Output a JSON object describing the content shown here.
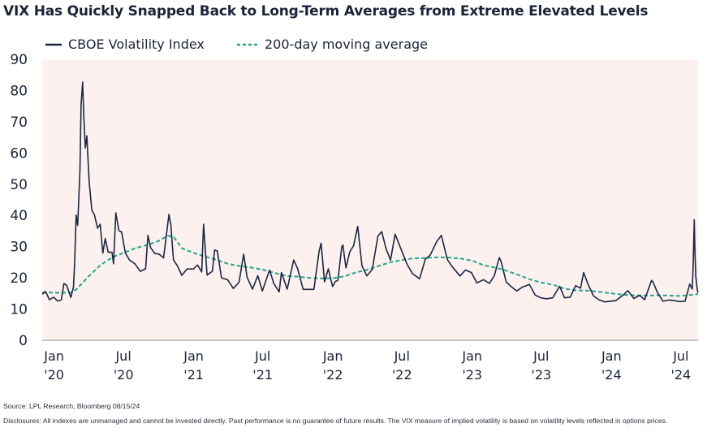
{
  "title": "VIX Has Quickly Snapped Back to Long-Term Averages from Extreme Elevated Levels",
  "legend": {
    "vix_label": "CBOE Volatility Index",
    "ma_label": "200-day moving average"
  },
  "footer": {
    "source": "Source: LPL Research, Bloomberg 08/15/24",
    "disclosures": "Disclosures: All indexes are unmanaged and cannot be invested directly. Past performance is no guarantee of future results. The VIX measure of implied volatility is based on volatility levels reflected in options prices."
  },
  "colors": {
    "vix": "#1b2743",
    "ma": "#2aa38a",
    "plot_background": "#fcf1ef",
    "text": "#1b2438"
  },
  "chart_data": {
    "type": "line",
    "title": "VIX Has Quickly Snapped Back to Long-Term Averages from Extreme Elevated Levels",
    "xlabel": "",
    "ylabel": "",
    "ylim": [
      0,
      90
    ],
    "y_ticks": [
      "0",
      "10",
      "20",
      "30",
      "40",
      "50",
      "60",
      "70",
      "80",
      "90"
    ],
    "x_ticks": [
      {
        "line1": "Jan",
        "line2": "'20",
        "date": "2020-01-01"
      },
      {
        "line1": "Jul",
        "line2": "'20",
        "date": "2020-07-01"
      },
      {
        "line1": "Jan",
        "line2": "'21",
        "date": "2021-01-01"
      },
      {
        "line1": "Jul",
        "line2": "'21",
        "date": "2021-07-01"
      },
      {
        "line1": "Jan",
        "line2": "'22",
        "date": "2022-01-01"
      },
      {
        "line1": "Jul",
        "line2": "'22",
        "date": "2022-07-01"
      },
      {
        "line1": "Jan",
        "line2": "'23",
        "date": "2023-01-01"
      },
      {
        "line1": "Jul",
        "line2": "'23",
        "date": "2023-07-01"
      },
      {
        "line1": "Jan",
        "line2": "'24",
        "date": "2024-01-01"
      },
      {
        "line1": "Jul",
        "line2": "'24",
        "date": "2024-07-01"
      }
    ],
    "xlim": [
      "2019-12-01",
      "2024-08-15"
    ],
    "grid": false,
    "legend_position": "top-left",
    "series": [
      {
        "name": "CBOE Volatility Index",
        "style": "solid",
        "points": [
          [
            "2019-12-01",
            14.7
          ],
          [
            "2019-12-10",
            15.6
          ],
          [
            "2019-12-20",
            13.0
          ],
          [
            "2019-12-31",
            13.8
          ],
          [
            "2020-01-10",
            12.6
          ],
          [
            "2020-01-20",
            12.9
          ],
          [
            "2020-01-27",
            18.2
          ],
          [
            "2020-02-03",
            17.6
          ],
          [
            "2020-02-14",
            13.7
          ],
          [
            "2020-02-21",
            17.1
          ],
          [
            "2020-02-24",
            25.0
          ],
          [
            "2020-02-28",
            40.1
          ],
          [
            "2020-03-03",
            36.8
          ],
          [
            "2020-03-09",
            54.5
          ],
          [
            "2020-03-12",
            75.5
          ],
          [
            "2020-03-16",
            82.7
          ],
          [
            "2020-03-19",
            72.0
          ],
          [
            "2020-03-23",
            61.6
          ],
          [
            "2020-03-27",
            65.5
          ],
          [
            "2020-04-02",
            50.9
          ],
          [
            "2020-04-09",
            41.7
          ],
          [
            "2020-04-16",
            40.1
          ],
          [
            "2020-04-24",
            35.9
          ],
          [
            "2020-05-01",
            37.2
          ],
          [
            "2020-05-08",
            27.9
          ],
          [
            "2020-05-14",
            32.6
          ],
          [
            "2020-05-22",
            28.2
          ],
          [
            "2020-06-01",
            28.2
          ],
          [
            "2020-06-05",
            24.5
          ],
          [
            "2020-06-11",
            40.8
          ],
          [
            "2020-06-19",
            35.1
          ],
          [
            "2020-06-26",
            34.7
          ],
          [
            "2020-07-06",
            27.9
          ],
          [
            "2020-07-17",
            25.7
          ],
          [
            "2020-07-31",
            24.5
          ],
          [
            "2020-08-14",
            22.1
          ],
          [
            "2020-08-28",
            22.9
          ],
          [
            "2020-09-03",
            33.6
          ],
          [
            "2020-09-10",
            29.7
          ],
          [
            "2020-09-21",
            27.8
          ],
          [
            "2020-10-02",
            27.6
          ],
          [
            "2020-10-14",
            26.4
          ],
          [
            "2020-10-28",
            40.3
          ],
          [
            "2020-11-02",
            37.1
          ],
          [
            "2020-11-09",
            25.8
          ],
          [
            "2020-11-20",
            23.7
          ],
          [
            "2020-12-01",
            20.8
          ],
          [
            "2020-12-15",
            22.9
          ],
          [
            "2020-12-31",
            22.8
          ],
          [
            "2021-01-11",
            24.1
          ],
          [
            "2021-01-22",
            21.9
          ],
          [
            "2021-01-27",
            37.2
          ],
          [
            "2021-02-05",
            20.9
          ],
          [
            "2021-02-19",
            22.1
          ],
          [
            "2021-02-25",
            28.9
          ],
          [
            "2021-03-04",
            28.6
          ],
          [
            "2021-03-15",
            20.0
          ],
          [
            "2021-03-31",
            19.4
          ],
          [
            "2021-04-15",
            16.6
          ],
          [
            "2021-04-30",
            18.6
          ],
          [
            "2021-05-12",
            27.6
          ],
          [
            "2021-05-21",
            20.2
          ],
          [
            "2021-06-04",
            16.4
          ],
          [
            "2021-06-18",
            20.7
          ],
          [
            "2021-06-30",
            15.8
          ],
          [
            "2021-07-19",
            22.5
          ],
          [
            "2021-07-30",
            18.2
          ],
          [
            "2021-08-13",
            15.5
          ],
          [
            "2021-08-19",
            21.7
          ],
          [
            "2021-09-03",
            16.4
          ],
          [
            "2021-09-20",
            25.7
          ],
          [
            "2021-09-30",
            23.1
          ],
          [
            "2021-10-15",
            16.3
          ],
          [
            "2021-10-29",
            16.3
          ],
          [
            "2021-11-12",
            16.3
          ],
          [
            "2021-11-26",
            28.6
          ],
          [
            "2021-12-01",
            31.1
          ],
          [
            "2021-12-10",
            18.7
          ],
          [
            "2021-12-20",
            22.9
          ],
          [
            "2021-12-31",
            17.2
          ],
          [
            "2022-01-07",
            18.8
          ],
          [
            "2022-01-14",
            19.2
          ],
          [
            "2022-01-24",
            29.9
          ],
          [
            "2022-01-27",
            30.5
          ],
          [
            "2022-02-04",
            23.2
          ],
          [
            "2022-02-14",
            28.3
          ],
          [
            "2022-02-24",
            30.3
          ],
          [
            "2022-03-07",
            36.5
          ],
          [
            "2022-03-18",
            23.9
          ],
          [
            "2022-03-31",
            20.6
          ],
          [
            "2022-04-14",
            22.7
          ],
          [
            "2022-04-29",
            33.4
          ],
          [
            "2022-05-09",
            34.8
          ],
          [
            "2022-05-20",
            29.4
          ],
          [
            "2022-06-01",
            25.7
          ],
          [
            "2022-06-13",
            34.0
          ],
          [
            "2022-06-30",
            28.7
          ],
          [
            "2022-07-15",
            24.2
          ],
          [
            "2022-07-29",
            21.3
          ],
          [
            "2022-08-16",
            19.7
          ],
          [
            "2022-08-31",
            25.9
          ],
          [
            "2022-09-13",
            27.3
          ],
          [
            "2022-09-30",
            31.6
          ],
          [
            "2022-10-12",
            33.6
          ],
          [
            "2022-10-28",
            25.8
          ],
          [
            "2022-11-10",
            23.5
          ],
          [
            "2022-11-30",
            20.6
          ],
          [
            "2022-12-14",
            22.5
          ],
          [
            "2022-12-30",
            21.7
          ],
          [
            "2023-01-13",
            18.4
          ],
          [
            "2023-01-31",
            19.4
          ],
          [
            "2023-02-15",
            18.2
          ],
          [
            "2023-02-28",
            20.7
          ],
          [
            "2023-03-13",
            26.5
          ],
          [
            "2023-03-17",
            25.5
          ],
          [
            "2023-03-31",
            18.7
          ],
          [
            "2023-04-14",
            17.1
          ],
          [
            "2023-04-28",
            15.8
          ],
          [
            "2023-05-12",
            17.0
          ],
          [
            "2023-05-31",
            17.9
          ],
          [
            "2023-06-15",
            14.5
          ],
          [
            "2023-06-30",
            13.6
          ],
          [
            "2023-07-14",
            13.3
          ],
          [
            "2023-07-31",
            13.6
          ],
          [
            "2023-08-18",
            17.3
          ],
          [
            "2023-08-31",
            13.6
          ],
          [
            "2023-09-15",
            13.8
          ],
          [
            "2023-09-29",
            17.5
          ],
          [
            "2023-10-12",
            16.7
          ],
          [
            "2023-10-20",
            21.7
          ],
          [
            "2023-10-31",
            18.1
          ],
          [
            "2023-11-15",
            14.2
          ],
          [
            "2023-11-30",
            12.9
          ],
          [
            "2023-12-15",
            12.3
          ],
          [
            "2023-12-29",
            12.5
          ],
          [
            "2024-01-12",
            12.7
          ],
          [
            "2024-01-31",
            14.4
          ],
          [
            "2024-02-13",
            15.9
          ],
          [
            "2024-02-29",
            13.4
          ],
          [
            "2024-03-15",
            14.4
          ],
          [
            "2024-03-28",
            13.0
          ],
          [
            "2024-04-15",
            19.2
          ],
          [
            "2024-04-19",
            18.7
          ],
          [
            "2024-04-30",
            15.4
          ],
          [
            "2024-05-15",
            12.5
          ],
          [
            "2024-05-31",
            12.9
          ],
          [
            "2024-06-14",
            12.7
          ],
          [
            "2024-06-28",
            12.4
          ],
          [
            "2024-07-12",
            12.5
          ],
          [
            "2024-07-24",
            18.0
          ],
          [
            "2024-07-31",
            16.4
          ],
          [
            "2024-08-02",
            23.4
          ],
          [
            "2024-08-05",
            38.6
          ],
          [
            "2024-08-07",
            27.9
          ],
          [
            "2024-08-09",
            20.4
          ],
          [
            "2024-08-13",
            16.1
          ],
          [
            "2024-08-15",
            15.2
          ]
        ]
      },
      {
        "name": "200-day moving average",
        "style": "dashed",
        "points": [
          [
            "2019-12-01",
            15.4
          ],
          [
            "2020-01-15",
            15.2
          ],
          [
            "2020-02-15",
            15.3
          ],
          [
            "2020-03-01",
            16.5
          ],
          [
            "2020-04-01",
            20.5
          ],
          [
            "2020-05-01",
            24.0
          ],
          [
            "2020-06-01",
            26.5
          ],
          [
            "2020-07-01",
            28.0
          ],
          [
            "2020-08-01",
            29.5
          ],
          [
            "2020-09-01",
            30.5
          ],
          [
            "2020-10-01",
            31.8
          ],
          [
            "2020-10-25",
            33.5
          ],
          [
            "2020-11-10",
            33.0
          ],
          [
            "2020-12-01",
            29.5
          ],
          [
            "2021-01-01",
            28.0
          ],
          [
            "2021-02-01",
            26.8
          ],
          [
            "2021-03-01",
            25.8
          ],
          [
            "2021-04-01",
            24.5
          ],
          [
            "2021-05-01",
            23.8
          ],
          [
            "2021-06-01",
            23.3
          ],
          [
            "2021-07-01",
            22.6
          ],
          [
            "2021-08-01",
            21.6
          ],
          [
            "2021-09-01",
            20.6
          ],
          [
            "2021-10-01",
            20.4
          ],
          [
            "2021-11-01",
            20.0
          ],
          [
            "2021-12-01",
            19.8
          ],
          [
            "2022-01-01",
            19.9
          ],
          [
            "2022-02-01",
            20.5
          ],
          [
            "2022-03-01",
            21.7
          ],
          [
            "2022-04-01",
            22.6
          ],
          [
            "2022-05-01",
            23.8
          ],
          [
            "2022-06-01",
            25.0
          ],
          [
            "2022-07-01",
            25.7
          ],
          [
            "2022-08-01",
            26.3
          ],
          [
            "2022-09-01",
            26.3
          ],
          [
            "2022-10-01",
            26.6
          ],
          [
            "2022-11-01",
            26.5
          ],
          [
            "2022-12-01",
            26.2
          ],
          [
            "2023-01-01",
            25.5
          ],
          [
            "2023-02-01",
            24.0
          ],
          [
            "2023-03-01",
            23.3
          ],
          [
            "2023-04-01",
            22.3
          ],
          [
            "2023-05-01",
            21.0
          ],
          [
            "2023-06-01",
            19.5
          ],
          [
            "2023-07-01",
            18.5
          ],
          [
            "2023-08-01",
            17.8
          ],
          [
            "2023-09-01",
            16.5
          ],
          [
            "2023-10-01",
            16.0
          ],
          [
            "2023-11-01",
            15.9
          ],
          [
            "2023-12-01",
            15.5
          ],
          [
            "2024-01-01",
            15.0
          ],
          [
            "2024-02-01",
            14.6
          ],
          [
            "2024-03-01",
            14.4
          ],
          [
            "2024-04-01",
            14.3
          ],
          [
            "2024-05-01",
            14.4
          ],
          [
            "2024-06-01",
            14.3
          ],
          [
            "2024-07-01",
            14.2
          ],
          [
            "2024-08-15",
            14.8
          ]
        ]
      }
    ]
  }
}
